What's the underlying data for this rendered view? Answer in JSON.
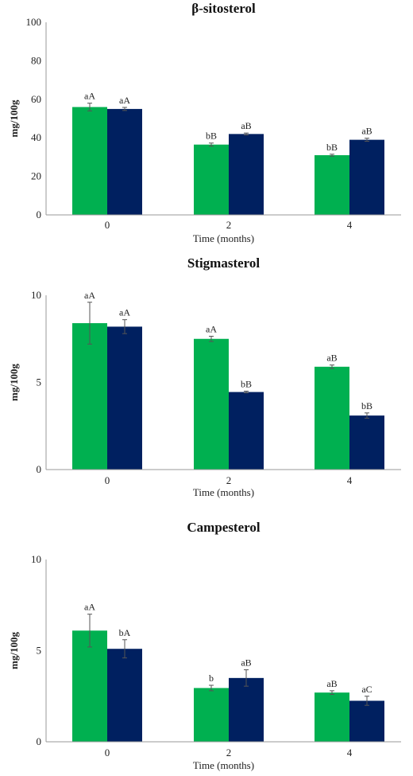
{
  "chart_data": [
    {
      "type": "bar",
      "title": "β-sitosterol",
      "xlabel": "Time (months)",
      "ylabel": "mg/100g",
      "categories": [
        "0",
        "2",
        "4"
      ],
      "ylim": [
        0,
        100
      ],
      "yticks": [
        "0",
        "20",
        "40",
        "60",
        "80",
        "100"
      ],
      "series": [
        {
          "color": "#00b050",
          "values": [
            56,
            36.5,
            31
          ],
          "errors": [
            2,
            0.8,
            0.5
          ],
          "labels": [
            "aA",
            "bB",
            "bB"
          ]
        },
        {
          "color": "#002060",
          "values": [
            55,
            42,
            39
          ],
          "errors": [
            0.8,
            0.5,
            0.8
          ],
          "labels": [
            "aA",
            "aB",
            "aB"
          ]
        }
      ]
    },
    {
      "type": "bar",
      "title": "Stigmasterol",
      "xlabel": "Time (months)",
      "ylabel": "mg/100g",
      "categories": [
        "0",
        "2",
        "4"
      ],
      "ylim": [
        0,
        10
      ],
      "yticks": [
        "0",
        "5",
        "10"
      ],
      "series": [
        {
          "color": "#00b050",
          "values": [
            8.4,
            7.5,
            5.9
          ],
          "errors": [
            1.2,
            0.15,
            0.1
          ],
          "labels": [
            "aA",
            "aA",
            "aB"
          ]
        },
        {
          "color": "#002060",
          "values": [
            8.2,
            4.45,
            3.1
          ],
          "errors": [
            0.4,
            0.05,
            0.15
          ],
          "labels": [
            "aA",
            "bB",
            "bB"
          ]
        }
      ]
    },
    {
      "type": "bar",
      "title": "Campesterol",
      "xlabel": "Time (months)",
      "ylabel": "mg/100g",
      "categories": [
        "0",
        "2",
        "4"
      ],
      "ylim": [
        0,
        10
      ],
      "yticks": [
        "0",
        "5",
        "10"
      ],
      "series": [
        {
          "color": "#00b050",
          "values": [
            6.1,
            2.95,
            2.7
          ],
          "errors": [
            0.9,
            0.15,
            0.1
          ],
          "labels": [
            "aA",
            "b",
            "aB"
          ]
        },
        {
          "color": "#002060",
          "values": [
            5.1,
            3.5,
            2.25
          ],
          "errors": [
            0.5,
            0.45,
            0.25
          ],
          "labels": [
            "bA",
            "aB",
            "aC"
          ]
        }
      ]
    }
  ]
}
